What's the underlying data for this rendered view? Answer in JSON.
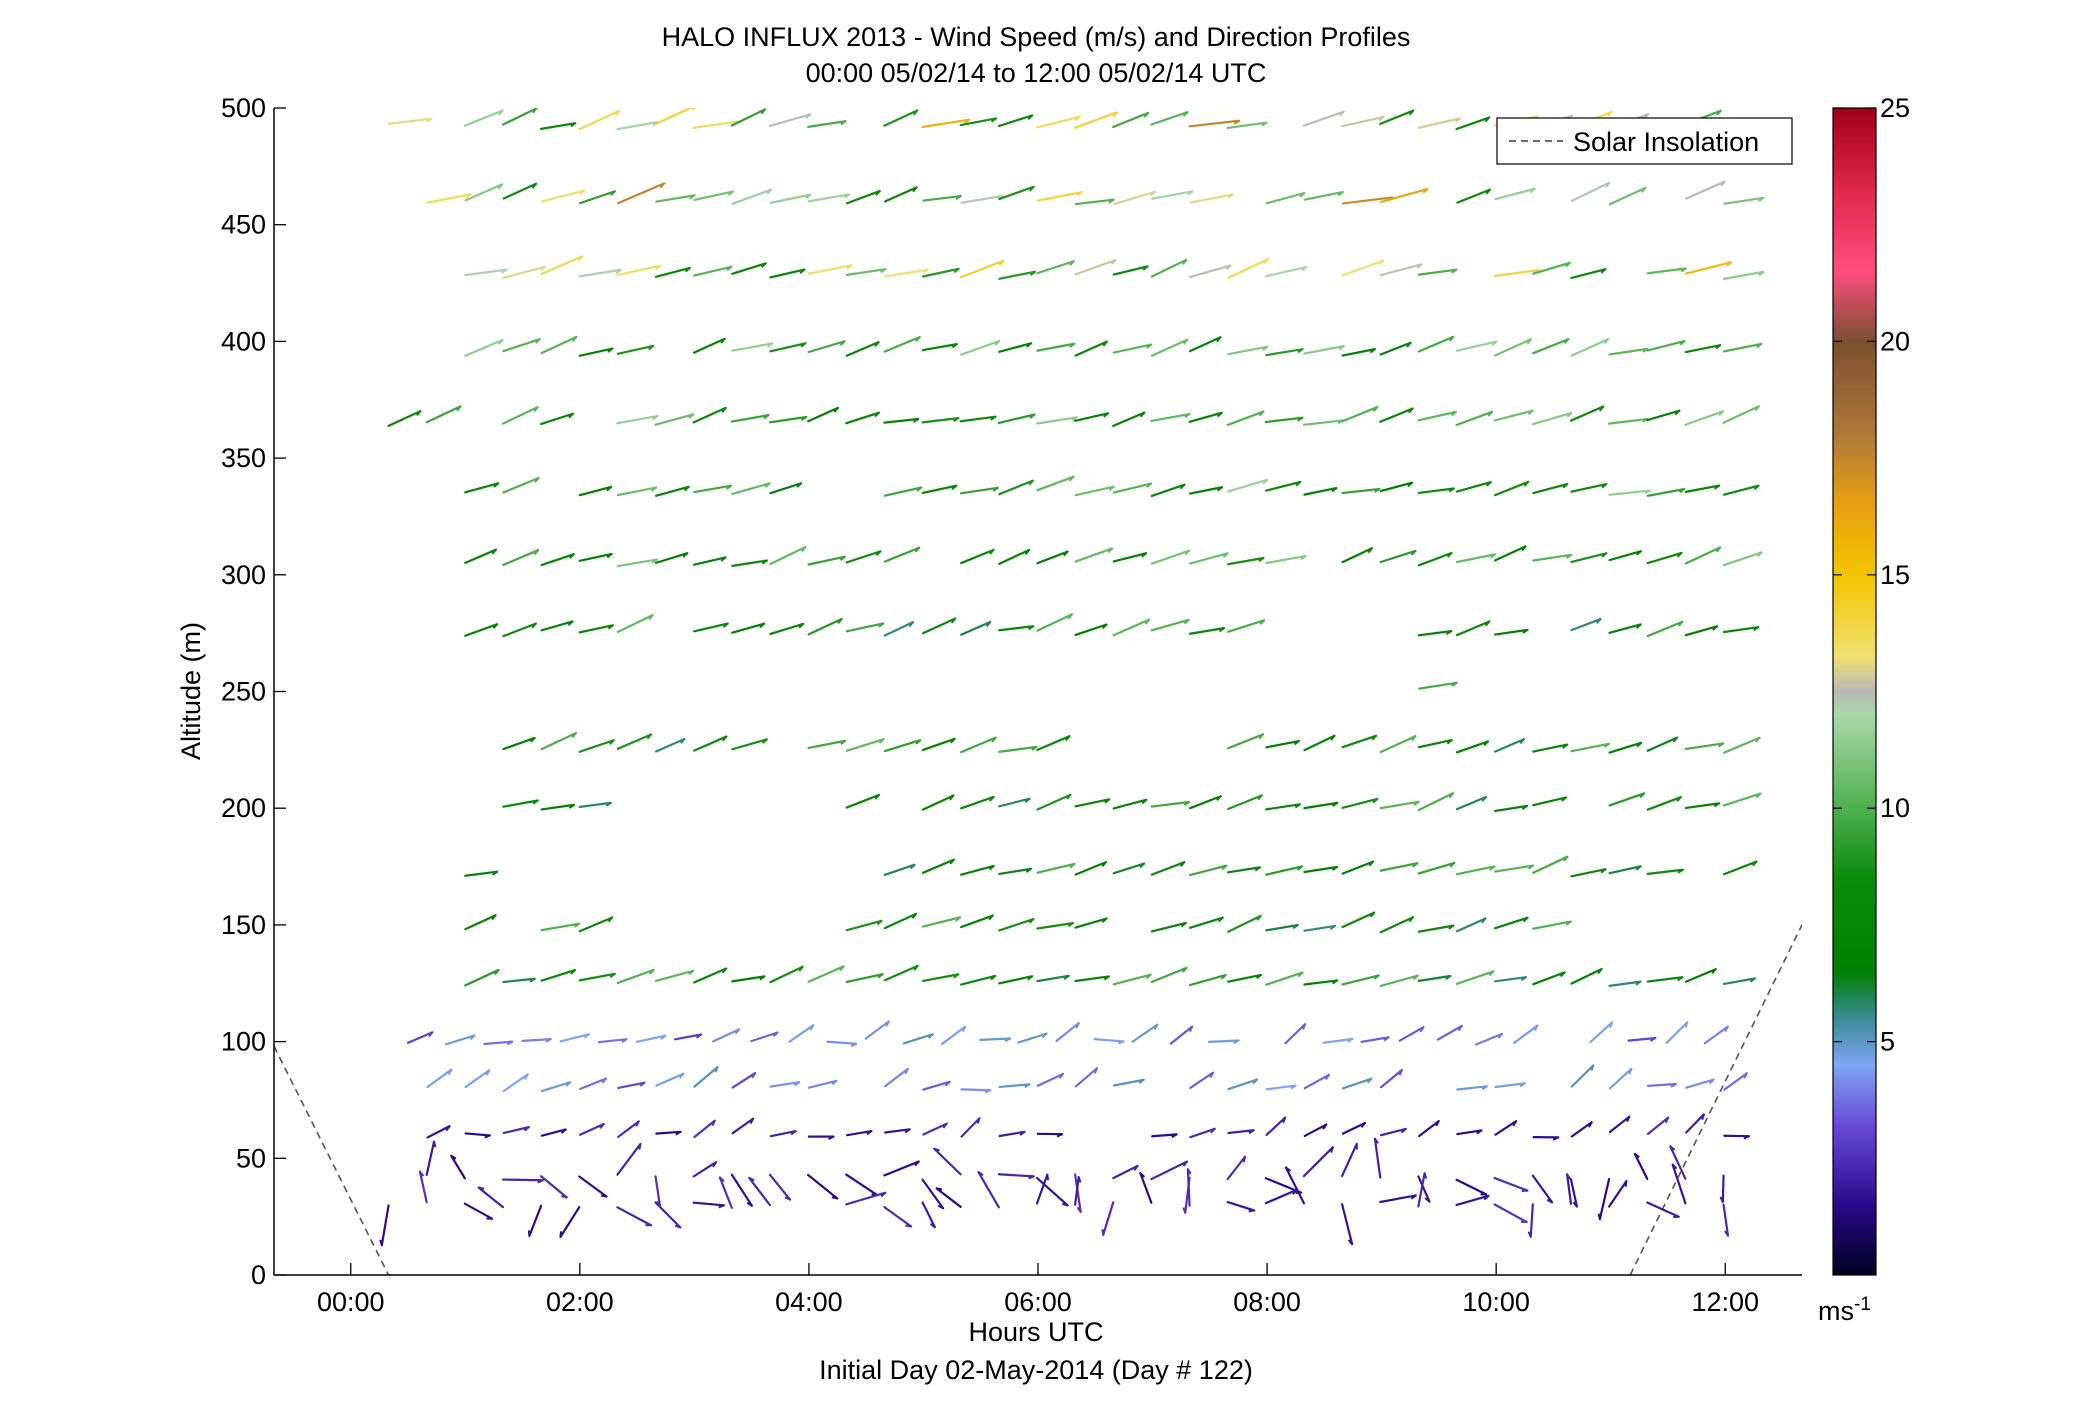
{
  "chart_data": {
    "type": "quiver",
    "title": "HALO INFLUX 2013 - Wind Speed (m/s) and Direction Profiles",
    "subtitle": "00:00 05/02/14 to 12:00 05/02/14  UTC",
    "xlabel": "Hours UTC",
    "footer": "Initial Day 02-May-2014 (Day # 122)",
    "ylabel": "Altitude (m)",
    "xlim": [
      -0.67,
      12.67
    ],
    "ylim": [
      0,
      500
    ],
    "x_ticks": [
      0,
      2,
      4,
      6,
      8,
      10,
      12
    ],
    "x_tick_labels": [
      "00:00",
      "02:00",
      "04:00",
      "06:00",
      "08:00",
      "10:00",
      "12:00"
    ],
    "y_ticks": [
      0,
      50,
      100,
      150,
      200,
      250,
      300,
      350,
      400,
      450,
      500
    ],
    "y_tick_labels": [
      "0",
      "50",
      "100",
      "150",
      "200",
      "250",
      "300",
      "350",
      "400",
      "450",
      "500"
    ],
    "colorbar": {
      "range": [
        0,
        25
      ],
      "ticks": [
        5,
        10,
        15,
        20,
        25
      ],
      "tick_labels": [
        "5",
        "10",
        "15",
        "20",
        "25"
      ],
      "unit_label": "ms",
      "unit_exponent": "-1"
    },
    "legend": {
      "position": "top-right",
      "entries": [
        "Solar Insolation"
      ]
    },
    "solar_insolation_lines": [
      {
        "x": [
          -0.67,
          0.33
        ],
        "y": [
          98,
          0
        ]
      },
      {
        "x": [
          11.17,
          12.67
        ],
        "y": [
          0,
          150
        ]
      }
    ],
    "altitude_levels": [
      30,
      42,
      60,
      80,
      100,
      125,
      148,
      172,
      200,
      225,
      252,
      275,
      305,
      335,
      365,
      395,
      428,
      460,
      492
    ],
    "time_step_hours": 0.333,
    "arrow_length_scale_hours_per_mps": 0.05,
    "coverage": [
      {
        "alt": 492,
        "start": 0.33,
        "end": 12.0
      },
      {
        "alt": 460,
        "start": 0.67,
        "end": 12.0
      },
      {
        "alt": 428,
        "start": 1.0,
        "end": 12.0,
        "gap": [
          8.3,
          8.6
        ]
      },
      {
        "alt": 395,
        "start": 1.0,
        "end": 12.0
      },
      {
        "alt": 365,
        "start": 0.33,
        "end": 12.0
      },
      {
        "alt": 335,
        "start": 1.0,
        "end": 12.0,
        "gap": [
          3.9,
          4.6
        ]
      },
      {
        "alt": 305,
        "start": 1.0,
        "end": 12.0
      },
      {
        "alt": 275,
        "start": 1.0,
        "end": 12.0,
        "gap": [
          7.7,
          9.0
        ]
      },
      {
        "alt": 252,
        "start": 9.33,
        "end": 9.6
      },
      {
        "alt": 225,
        "start": 1.0,
        "end": 12.0,
        "gap": [
          6.3,
          7.6
        ]
      },
      {
        "alt": 200,
        "start": 1.0,
        "end": 12.0,
        "gap": [
          2.1,
          4.0
        ]
      },
      {
        "alt": 172,
        "start": 1.0,
        "end": 12.0,
        "gap": [
          1.9,
          4.6
        ]
      },
      {
        "alt": 148,
        "start": 1.0,
        "end": 10.4,
        "gap": [
          2.4,
          4.0
        ]
      },
      {
        "alt": 125,
        "start": 1.0,
        "end": 12.0
      },
      {
        "alt": 100,
        "start": 0.5,
        "end": 12.0
      },
      {
        "alt": 80,
        "start": 0.67,
        "end": 12.0
      },
      {
        "alt": 60,
        "start": 0.67,
        "end": 12.0
      },
      {
        "alt": 42,
        "start": 0.33,
        "end": 12.0
      },
      {
        "alt": 30,
        "start": 0.33,
        "end": 12.0
      }
    ],
    "typical_speed_mps": [
      {
        "alt_min": 0,
        "alt_max": 70,
        "speed": 2
      },
      {
        "alt_min": 70,
        "alt_max": 110,
        "speed": 4
      },
      {
        "alt_min": 110,
        "alt_max": 300,
        "speed": 8
      },
      {
        "alt_min": 300,
        "alt_max": 420,
        "speed": 9
      },
      {
        "alt_min": 420,
        "alt_max": 500,
        "speed": 11
      }
    ]
  }
}
